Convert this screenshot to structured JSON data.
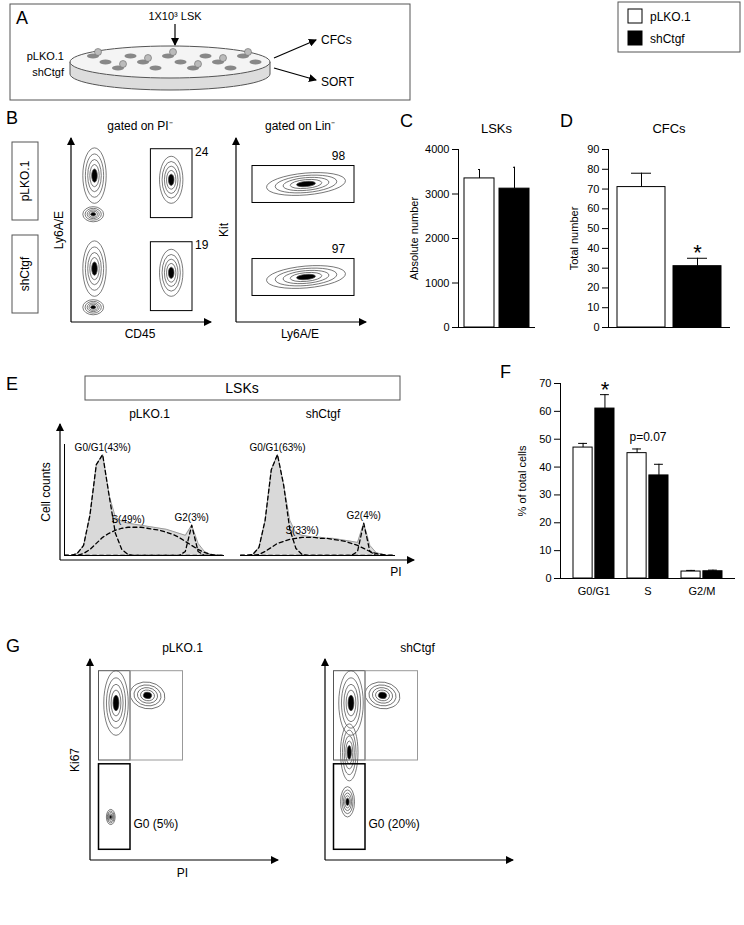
{
  "legend": [
    {
      "name": "pLKO.1",
      "color": "#ffffff"
    },
    {
      "name": "shCtgf",
      "color": "#000000"
    }
  ],
  "panel_A": {
    "letter": "A",
    "input": "1X10³ LSK",
    "dishes": [
      "pLKO.1",
      "shCtgf"
    ],
    "outputs": [
      "CFCs",
      "SORT"
    ]
  },
  "panel_B": {
    "letter": "B",
    "rows": [
      "pLKO.1",
      "shCtgf"
    ],
    "plots": [
      {
        "header": "gated on PI⁻",
        "x_label": "CD45",
        "y_label": "Ly6A/E",
        "gate_values": [
          24,
          19
        ]
      },
      {
        "header": "gated on Lin⁻",
        "x_label": "Ly6A/E",
        "y_label": "Kit",
        "gate_values": [
          98,
          97
        ]
      }
    ]
  },
  "chart_data": [
    {
      "letter": "C",
      "type": "bar",
      "title": "LSKs",
      "y_label": "Absolute number",
      "categories": [
        "pLKO.1",
        "shCtgf"
      ],
      "values": [
        3350,
        3120
      ],
      "errors": [
        200,
        480
      ],
      "colors": [
        "#ffffff",
        "#000000"
      ],
      "ylim": [
        0,
        4000
      ],
      "yticks": [
        0,
        1000,
        2000,
        3000,
        4000
      ],
      "grid": false,
      "tick_labels": "y"
    },
    {
      "letter": "D",
      "type": "bar",
      "title": "CFCs",
      "y_label": "Total number",
      "categories": [
        "pLKO.1",
        "shCtgf"
      ],
      "values": [
        71,
        31
      ],
      "errors": [
        7,
        4
      ],
      "colors": [
        "#ffffff",
        "#000000"
      ],
      "ylim": [
        0,
        90
      ],
      "yticks": [
        0,
        10,
        20,
        30,
        40,
        50,
        60,
        70,
        80,
        90
      ],
      "grid": false,
      "tick_labels": "y",
      "annotations": [
        {
          "category": "shCtgf",
          "text": "*"
        }
      ]
    },
    {
      "letter": "F",
      "type": "bar",
      "y_label": "% of total cells",
      "categories": [
        "G0/G1",
        "S",
        "G2/M"
      ],
      "series": [
        {
          "name": "pLKO.1",
          "color": "#ffffff",
          "values": [
            47,
            45,
            2.5
          ],
          "errors": [
            1.5,
            1.5,
            0.4
          ]
        },
        {
          "name": "shCtgf",
          "color": "#000000",
          "values": [
            61,
            37,
            2.6
          ],
          "errors": [
            5,
            4,
            0.4
          ]
        }
      ],
      "ylim": [
        0,
        70
      ],
      "yticks": [
        0,
        10,
        20,
        30,
        40,
        50,
        60,
        70
      ],
      "grid": false,
      "annotations": [
        {
          "category": "G0/G1",
          "series": "shCtgf",
          "text": "*"
        },
        {
          "category": "S",
          "text": "p=0.07"
        }
      ]
    }
  ],
  "panel_E": {
    "letter": "E",
    "header": "LSKs",
    "x_label": "PI",
    "y_label": "Cell counts",
    "tick_labels": false,
    "xlim": [
      0,
      100
    ],
    "ylim": [
      0,
      110
    ],
    "x": [
      0,
      4,
      8,
      12,
      16,
      20,
      24,
      28,
      32,
      36,
      40,
      44,
      48,
      52,
      56,
      60,
      64,
      68,
      72,
      76,
      80,
      84,
      88,
      92,
      96,
      100
    ],
    "plots": [
      {
        "title": "pLKO.1",
        "histogram": {
          "color": "#d9d9d9",
          "values": [
            0,
            0,
            2,
            10,
            40,
            90,
            100,
            60,
            38,
            34,
            32,
            31,
            30,
            29,
            28,
            27,
            26,
            24,
            22,
            20,
            30,
            12,
            4,
            1,
            0,
            0
          ]
        },
        "fits": [
          {
            "label": "G0/G1(43%)",
            "line_style": "dashed",
            "values": [
              0,
              0,
              2,
              10,
              40,
              90,
              100,
              60,
              22,
              6,
              1,
              0,
              0,
              0,
              0,
              0,
              0,
              0,
              0,
              0,
              0,
              0,
              0,
              0,
              0,
              0
            ]
          },
          {
            "label": "S(49%)",
            "line_style": "dashed",
            "values": [
              0,
              0,
              0,
              2,
              6,
              12,
              18,
              22,
              25,
              27,
              28,
              28,
              28,
              27,
              26,
              25,
              23,
              21,
              18,
              14,
              10,
              6,
              3,
              1,
              0,
              0
            ]
          },
          {
            "label": "G2(3%)",
            "line_style": "dashed",
            "values": [
              0,
              0,
              0,
              0,
              0,
              0,
              0,
              0,
              0,
              0,
              0,
              0,
              0,
              0,
              0,
              0,
              0,
              0,
              0,
              4,
              30,
              4,
              0,
              0,
              0,
              0
            ]
          }
        ]
      },
      {
        "title": "shCtgf",
        "histogram": {
          "color": "#d9d9d9",
          "values": [
            0,
            0,
            1,
            8,
            35,
            85,
            100,
            70,
            35,
            22,
            20,
            19,
            18,
            18,
            17,
            17,
            16,
            15,
            14,
            13,
            32,
            10,
            3,
            1,
            0,
            0
          ]
        },
        "fits": [
          {
            "label": "G0/G1(63%)",
            "line_style": "dashed",
            "values": [
              0,
              0,
              1,
              8,
              35,
              85,
              100,
              70,
              26,
              7,
              1,
              0,
              0,
              0,
              0,
              0,
              0,
              0,
              0,
              0,
              0,
              0,
              0,
              0,
              0,
              0
            ]
          },
          {
            "label": "S(33%)",
            "line_style": "dashed",
            "values": [
              0,
              0,
              0,
              1,
              4,
              8,
              12,
              14,
              16,
              17,
              18,
              18,
              18,
              17,
              17,
              16,
              15,
              14,
              12,
              10,
              7,
              4,
              2,
              1,
              0,
              0
            ]
          },
          {
            "label": "G2(4%)",
            "line_style": "dashed",
            "values": [
              0,
              0,
              0,
              0,
              0,
              0,
              0,
              0,
              0,
              0,
              0,
              0,
              0,
              0,
              0,
              0,
              0,
              0,
              0,
              4,
              32,
              4,
              0,
              0,
              0,
              0
            ]
          }
        ]
      }
    ]
  },
  "panel_G": {
    "letter": "G",
    "x_label": "PI",
    "y_label": "Ki67",
    "plots": [
      {
        "title": "pLKO.1",
        "gate_label": "G0 (5%)"
      },
      {
        "title": "shCtgf",
        "gate_label": "G0 (20%)"
      }
    ]
  }
}
